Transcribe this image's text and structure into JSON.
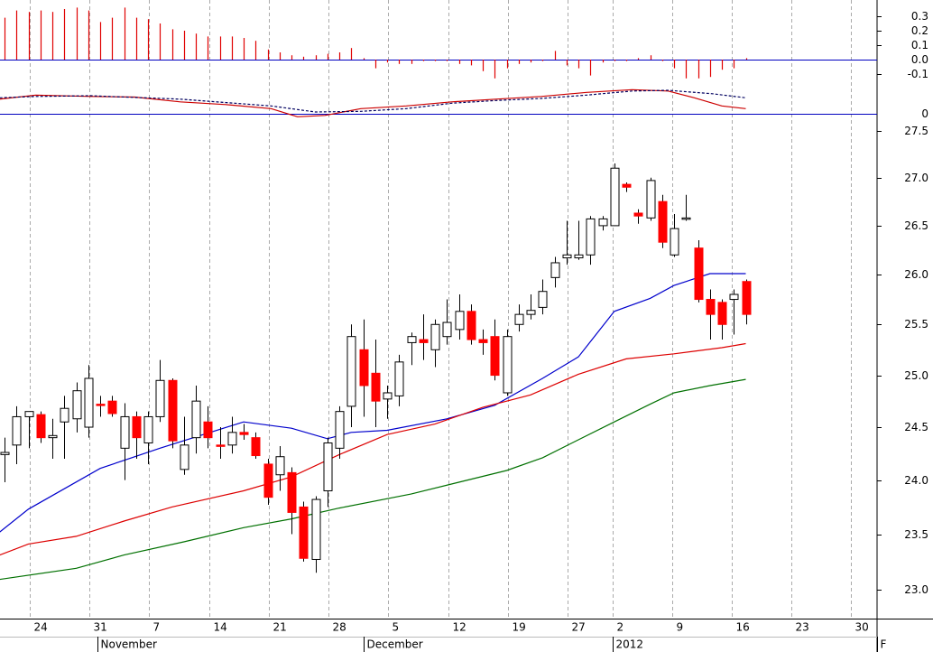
{
  "chart_data": [
    {
      "type": "bar",
      "color": "#e00000",
      "zero_color": "#0000c0",
      "x": [
        0,
        1,
        2,
        3,
        4,
        5,
        6,
        7,
        8,
        9,
        10,
        11,
        12,
        13,
        14,
        15,
        16,
        17,
        18,
        19,
        20,
        21,
        22,
        23,
        24,
        25,
        26,
        27,
        28,
        29,
        30,
        31,
        32,
        33,
        34,
        35,
        36,
        37,
        38,
        39,
        40,
        41,
        42,
        43,
        44,
        45,
        46,
        47,
        48,
        49,
        50,
        51,
        52,
        53,
        54,
        55,
        56,
        57,
        58,
        59,
        60,
        61,
        62
      ],
      "values": [
        0.29,
        0.34,
        0.33,
        0.34,
        0.33,
        0.35,
        0.36,
        0.34,
        0.26,
        0.29,
        0.36,
        0.29,
        0.28,
        0.25,
        0.21,
        0.2,
        0.18,
        0.16,
        0.16,
        0.16,
        0.15,
        0.13,
        0.07,
        0.05,
        0.03,
        0.02,
        0.03,
        0.04,
        0.05,
        0.08,
        0.01,
        -0.06,
        -0.02,
        -0.03,
        -0.03,
        -0.01,
        -0.01,
        -0.01,
        -0.03,
        -0.04,
        -0.08,
        -0.13,
        -0.06,
        -0.03,
        -0.02,
        -0.01,
        0.06,
        -0.04,
        -0.06,
        -0.11,
        -0.02,
        -0.01,
        -0.01,
        0.01,
        0.03,
        -0.01,
        -0.06,
        -0.13,
        -0.13,
        -0.12,
        -0.07,
        -0.06,
        0.01
      ],
      "ylim": [
        -0.15,
        0.4125
      ],
      "yticks": [
        0.3,
        0.2,
        0.1,
        {
          "value": 0,
          "label": "0.0"
        },
        -0.1
      ]
    },
    {
      "type": "line",
      "zero_color": "#0000c0",
      "series": [
        {
          "color": "#cc0000",
          "style": "solid",
          "x": [
            -0.4,
            2.6,
            7.2,
            10.9,
            14.7,
            18.5,
            22.3,
            24.5,
            26.8,
            29.8,
            33.6,
            37.4,
            41.1,
            44.9,
            48.7,
            52.5,
            55.5,
            57.7,
            60,
            62
          ],
          "values": [
            0.21,
            0.27,
            0.25,
            0.24,
            0.17,
            0.13,
            0.07,
            -0.05,
            -0.03,
            0.07,
            0.11,
            0.17,
            0.21,
            0.25,
            0.31,
            0.35,
            0.33,
            0.23,
            0.11,
            0.07
          ]
        },
        {
          "color": "#000060",
          "style": "dashed",
          "x": [
            -0.4,
            2.6,
            7.2,
            14.7,
            22.3,
            26,
            29.8,
            33.6,
            37.4,
            41.1,
            44.9,
            48.7,
            52.5,
            55.5,
            59.2,
            62
          ],
          "values": [
            0.23,
            0.25,
            0.26,
            0.21,
            0.11,
            0.02,
            0.03,
            0.07,
            0.15,
            0.19,
            0.22,
            0.27,
            0.33,
            0.34,
            0.29,
            0.23
          ]
        }
      ],
      "ylim": [
        -0.1,
        0.7
      ],
      "yticks": [
        0
      ]
    },
    {
      "type": "candlestick",
      "log_scale": true,
      "up_color": "#ffffff",
      "down_color": "#ff0000",
      "x": [
        0,
        1,
        2,
        3,
        4,
        5,
        6,
        7,
        8,
        9,
        10,
        11,
        12,
        13,
        14,
        15,
        16,
        17,
        18,
        19,
        20,
        21,
        22,
        23,
        24,
        25,
        26,
        27,
        28,
        29,
        30,
        31,
        32,
        33,
        34,
        35,
        36,
        37,
        38,
        39,
        40,
        41,
        42,
        43,
        44,
        45,
        46,
        47,
        48,
        49,
        50,
        51,
        52,
        53,
        54,
        55,
        56,
        57,
        58,
        59,
        60,
        61,
        62
      ],
      "open": [
        24.24,
        24.33,
        24.6,
        24.62,
        24.4,
        24.55,
        24.58,
        24.5,
        24.72,
        24.75,
        24.3,
        24.6,
        24.35,
        24.6,
        24.95,
        24.1,
        24.4,
        24.55,
        24.33,
        24.33,
        24.45,
        24.4,
        24.15,
        24.05,
        24.07,
        23.75,
        23.27,
        23.9,
        24.3,
        24.7,
        25.25,
        25.02,
        24.77,
        24.8,
        25.32,
        25.35,
        25.25,
        25.38,
        25.45,
        25.63,
        25.35,
        25.38,
        24.83,
        25.5,
        25.6,
        25.67,
        25.97,
        26.17,
        26.17,
        26.2,
        26.5,
        26.5,
        26.93,
        26.63,
        26.58,
        26.75,
        26.2,
        26.57,
        26.27,
        25.75,
        25.72,
        25.75,
        25.93
      ],
      "high": [
        24.4,
        24.7,
        24.65,
        24.65,
        24.58,
        24.8,
        24.93,
        25.1,
        24.8,
        24.8,
        24.73,
        24.65,
        24.65,
        25.15,
        24.97,
        24.6,
        24.9,
        24.7,
        24.5,
        24.6,
        24.53,
        24.45,
        24.2,
        24.32,
        24.12,
        23.8,
        23.85,
        24.4,
        24.7,
        25.5,
        25.55,
        25.35,
        24.9,
        25.2,
        25.42,
        25.6,
        25.55,
        25.75,
        25.8,
        25.7,
        25.45,
        25.55,
        25.45,
        25.7,
        25.8,
        25.95,
        26.18,
        26.55,
        26.55,
        26.6,
        26.6,
        27.15,
        26.95,
        26.67,
        27.0,
        26.82,
        26.62,
        26.82,
        26.35,
        25.85,
        25.75,
        25.85,
        25.95
      ],
      "low": [
        23.98,
        24.15,
        24.3,
        24.35,
        24.2,
        24.2,
        24.45,
        24.4,
        24.6,
        24.6,
        24.0,
        24.2,
        24.15,
        24.55,
        24.3,
        24.05,
        24.25,
        24.3,
        24.2,
        24.25,
        24.38,
        24.2,
        23.77,
        23.9,
        23.5,
        23.25,
        23.15,
        23.75,
        24.2,
        24.5,
        24.6,
        24.5,
        24.58,
        24.7,
        25.1,
        25.15,
        25.08,
        25.3,
        25.35,
        25.3,
        25.2,
        24.95,
        24.8,
        25.43,
        25.55,
        25.6,
        25.87,
        26.1,
        26.15,
        26.1,
        26.45,
        26.5,
        26.85,
        26.52,
        26.55,
        26.27,
        26.18,
        26.55,
        25.72,
        25.35,
        25.35,
        25.4,
        25.5
      ],
      "close": [
        24.26,
        24.6,
        24.65,
        24.4,
        24.42,
        24.68,
        24.85,
        24.97,
        24.71,
        24.63,
        24.6,
        24.4,
        24.6,
        24.95,
        24.37,
        24.33,
        24.75,
        24.4,
        24.32,
        24.45,
        24.43,
        24.23,
        23.84,
        24.22,
        23.7,
        23.28,
        23.82,
        24.35,
        24.65,
        25.38,
        24.9,
        24.75,
        24.83,
        25.13,
        25.38,
        25.32,
        25.5,
        25.52,
        25.63,
        25.35,
        25.32,
        25.0,
        25.38,
        25.6,
        25.64,
        25.83,
        26.12,
        26.2,
        26.2,
        26.57,
        26.57,
        27.1,
        26.9,
        26.6,
        26.97,
        26.33,
        26.47,
        26.58,
        25.75,
        25.6,
        25.5,
        25.8,
        25.6
      ],
      "series": [
        {
          "color": "#0000cc",
          "x": [
            -0.4,
            2,
            8,
            13,
            20,
            24,
            27,
            29,
            32,
            37,
            41,
            45,
            48,
            51,
            54,
            56,
            59,
            62
          ],
          "values": [
            23.52,
            23.73,
            24.11,
            24.3,
            24.55,
            24.49,
            24.39,
            24.45,
            24.47,
            24.58,
            24.71,
            24.97,
            25.18,
            25.63,
            25.76,
            25.89,
            26.01,
            26.01
          ]
        },
        {
          "color": "#dd0000",
          "x": [
            -0.4,
            2,
            6,
            10,
            14,
            20,
            24,
            28,
            32,
            36,
            40,
            44,
            48,
            52,
            56,
            60,
            62
          ],
          "values": [
            23.31,
            23.41,
            23.48,
            23.62,
            23.75,
            23.9,
            24.03,
            24.24,
            24.43,
            24.53,
            24.69,
            24.81,
            25.01,
            25.16,
            25.21,
            25.27,
            25.31
          ]
        },
        {
          "color": "#007000",
          "x": [
            -0.4,
            6,
            10,
            15,
            20,
            24,
            28,
            34,
            38,
            42,
            45,
            48,
            51,
            54,
            56,
            59,
            62
          ],
          "values": [
            23.09,
            23.19,
            23.31,
            23.43,
            23.56,
            23.64,
            23.74,
            23.87,
            23.98,
            24.09,
            24.21,
            24.38,
            24.55,
            24.72,
            24.83,
            24.9,
            24.96
          ]
        }
      ],
      "ylim": [
        22.74,
        27.69
      ],
      "yticks": [
        27.5,
        {
          "value": 27,
          "label": "27.0"
        },
        26.5,
        {
          "value": 26,
          "label": "26.0"
        },
        25.5,
        {
          "value": 25,
          "label": "25.0"
        },
        24.5,
        {
          "value": 24,
          "label": "24.0"
        },
        23.5,
        {
          "value": 23,
          "label": "23.0"
        }
      ],
      "xlim": [
        -0.38,
        72.98
      ],
      "grid": true,
      "xticks": [
        {
          "value": 2.11,
          "label": "24"
        },
        {
          "value": 7.09,
          "label": "31"
        },
        {
          "value": 12.08,
          "label": "7"
        },
        {
          "value": 17.13,
          "label": "14"
        },
        {
          "value": 22.11,
          "label": "21"
        },
        {
          "value": 27.09,
          "label": "28"
        },
        {
          "value": 32.08,
          "label": "5"
        },
        {
          "value": 37.13,
          "label": "12"
        },
        {
          "value": 42.11,
          "label": "19"
        },
        {
          "value": 47.09,
          "label": "27"
        },
        {
          "value": 50.87,
          "label": "2"
        },
        {
          "value": 55.85,
          "label": "9"
        },
        {
          "value": 60.83,
          "label": "16"
        },
        {
          "value": 65.81,
          "label": "23"
        },
        {
          "value": 70.79,
          "label": "30"
        }
      ],
      "month_ticks": [
        {
          "value": 7.77,
          "label": "November"
        },
        {
          "value": 30.04,
          "label": "December"
        },
        {
          "value": 50.87,
          "label": "2012"
        },
        {
          "value": 72.98,
          "label": "F"
        }
      ]
    }
  ]
}
